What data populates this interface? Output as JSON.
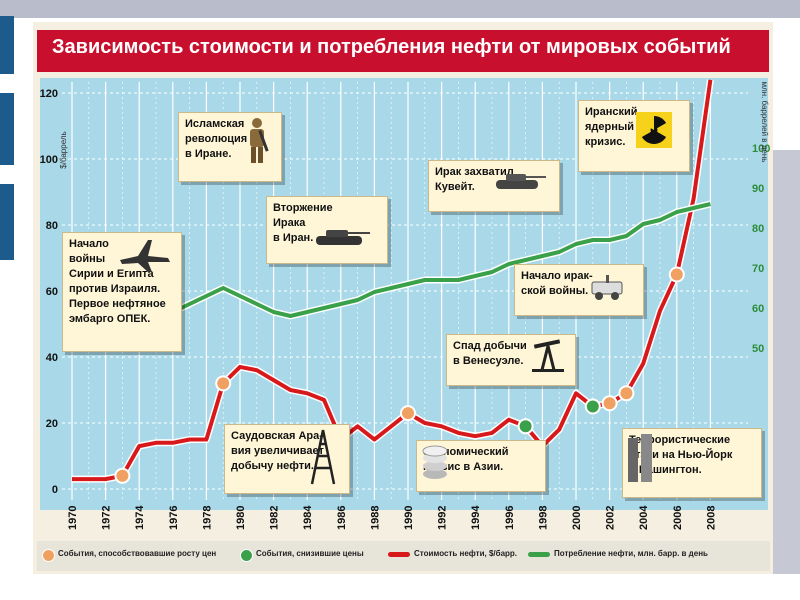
{
  "chart_data": {
    "type": "line",
    "title": "Зависимость стоимости и потребления нефти от мировых событий",
    "x_tick_labels": [
      "1970",
      "1972",
      "1974",
      "1976",
      "1978",
      "1980",
      "1982",
      "1984",
      "1986",
      "1988",
      "1990",
      "1992",
      "1994",
      "1996",
      "1998",
      "2000",
      "2002",
      "2004",
      "2006",
      "2008"
    ],
    "y_left": {
      "label": "$/баррель",
      "ticks": [
        0,
        20,
        40,
        60,
        80,
        100,
        120
      ],
      "range": [
        0,
        125
      ]
    },
    "y_right": {
      "label": "млн. баррелей в день",
      "ticks": [
        50,
        60,
        70,
        80,
        90,
        100
      ],
      "range": [
        30,
        105
      ]
    },
    "grid": true,
    "legend_position": "bottom",
    "series": [
      {
        "name": "Стоимость нефти, $/барр.",
        "color": "#d7191c",
        "axis": "left",
        "x": [
          1970,
          1971,
          1972,
          1973,
          1974,
          1975,
          1976,
          1977,
          1978,
          1979,
          1980,
          1981,
          1982,
          1983,
          1984,
          1985,
          1986,
          1987,
          1988,
          1989,
          1990,
          1991,
          1992,
          1993,
          1994,
          1995,
          1996,
          1997,
          1998,
          1999,
          2000,
          2001,
          2002,
          2003,
          2004,
          2005,
          2006,
          2007,
          2008
        ],
        "y": [
          3,
          3,
          3,
          4,
          13,
          14,
          14,
          15,
          15,
          32,
          37,
          36,
          33,
          30,
          29,
          27,
          15,
          19,
          15,
          19,
          23,
          20,
          19,
          17,
          16,
          17,
          21,
          19,
          13,
          18,
          29,
          25,
          26,
          29,
          38,
          54,
          65,
          88,
          124
        ]
      },
      {
        "name": "Потребление нефти, млн. барр. в день",
        "color": "#3aa14a",
        "axis": "right",
        "x": [
          1974,
          1975,
          1976,
          1977,
          1978,
          1979,
          1980,
          1981,
          1982,
          1983,
          1984,
          1985,
          1986,
          1987,
          1988,
          1989,
          1990,
          1991,
          1992,
          1993,
          1994,
          1995,
          1996,
          1997,
          1998,
          1999,
          2000,
          2001,
          2002,
          2003,
          2004,
          2005,
          2006,
          2007,
          2008
        ],
        "y": [
          57,
          57,
          59,
          61,
          63,
          65,
          63,
          61,
          59,
          58,
          59,
          60,
          61,
          62,
          64,
          65,
          66,
          67,
          67,
          67,
          68,
          69,
          71,
          72,
          73,
          74,
          76,
          77,
          77,
          78,
          81,
          82,
          84,
          85,
          86
        ]
      }
    ],
    "events_up": [
      1973,
      1979,
      1990,
      2002,
      2003,
      2006
    ],
    "events_down": [
      1986,
      1997,
      2001
    ],
    "annotations": [
      {
        "id": "arab-israel",
        "text": "Начало\nвойны\nСирии и Египта\nпротив Израиля.\nПервое нефтяное\nэмбарго ОПЕК."
      },
      {
        "id": "iran-revolution",
        "text": "Исламская\nреволюция\nв Иране."
      },
      {
        "id": "iraq-iran",
        "text": "Вторжение\nИрака\nв Иран."
      },
      {
        "id": "saudi",
        "text": "Саудовская Ара-\nвия увеличивает\nдобычу нефти."
      },
      {
        "id": "kuwait",
        "text": "Ирак захватил\nКувейт."
      },
      {
        "id": "iraq-war",
        "text": "Начало ирак-\nской войны."
      },
      {
        "id": "venezuela",
        "text": "Спад добычи\nв Венесуэле."
      },
      {
        "id": "asia",
        "text": "Экономический\nкризис в Азии."
      },
      {
        "id": "iran-nuclear",
        "text": "Иранский\nядерный\nкризис."
      },
      {
        "id": "terror",
        "text": "Террористические\nатаки на Нью-Йорк\nи Вашингтон."
      }
    ],
    "legend": [
      {
        "type": "dot",
        "color": "#f0a060",
        "label": "События, способствовавшие росту цен"
      },
      {
        "type": "dot",
        "color": "#3aa14a",
        "label": "События, снизившие цены"
      },
      {
        "type": "line",
        "color": "#d7191c",
        "label": "Стоимость нефти, $/барр."
      },
      {
        "type": "line",
        "color": "#3aa14a",
        "label": "Потребление нефти, млн. барр. в день"
      }
    ]
  }
}
